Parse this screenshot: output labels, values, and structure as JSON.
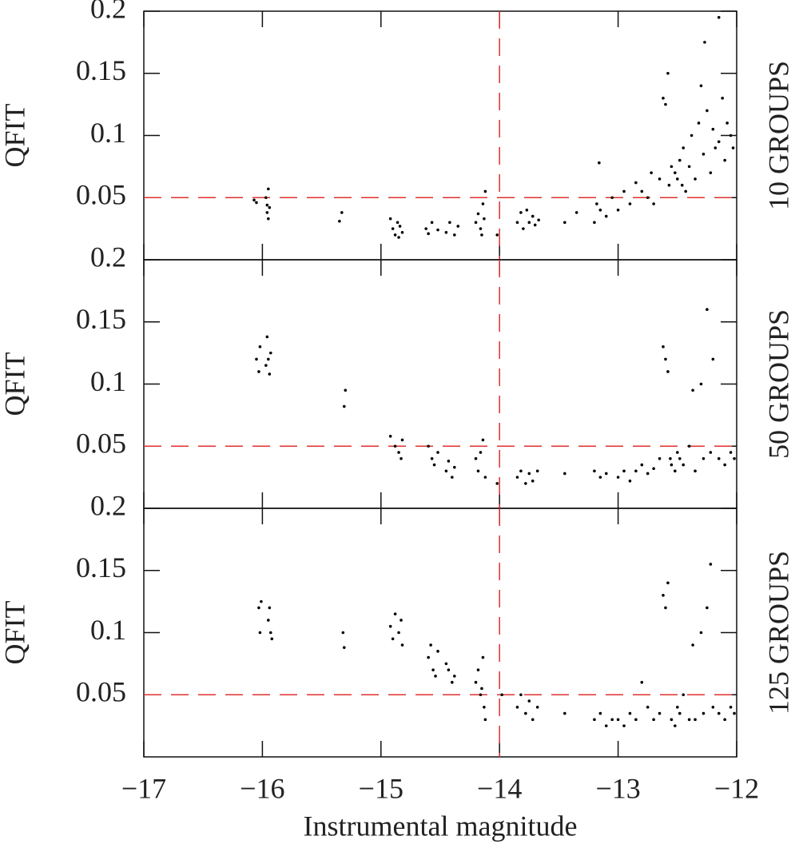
{
  "chart_data": [
    {
      "type": "scatter",
      "ylabel": "QFIT",
      "panel_label": "10 GROUPS",
      "color": "#000000",
      "ref_color": "#e03030",
      "xlim": [
        -17,
        -12
      ],
      "ylim": [
        0,
        0.2
      ],
      "yticks": [
        0.05,
        0.1,
        0.15,
        0.2
      ],
      "hline": 0.05,
      "vline": -14,
      "x": [
        -16.07,
        -16.05,
        -15.97,
        -15.96,
        -15.95,
        -15.96,
        -15.95,
        -15.94,
        -15.33,
        -15.35,
        -14.92,
        -14.9,
        -14.88,
        -14.86,
        -14.84,
        -14.82,
        -14.85,
        -14.62,
        -14.6,
        -14.57,
        -14.52,
        -14.45,
        -14.42,
        -14.38,
        -14.35,
        -14.2,
        -14.18,
        -14.16,
        -14.14,
        -14.12,
        -14.15,
        -14.13,
        -14.02,
        -13.85,
        -13.82,
        -13.8,
        -13.77,
        -13.75,
        -13.72,
        -13.7,
        -13.67,
        -13.45,
        -13.35,
        -13.2,
        -13.18,
        -13.16,
        -13.15,
        -13.1,
        -13.05,
        -13.0,
        -12.95,
        -12.9,
        -12.85,
        -12.8,
        -12.75,
        -12.72,
        -12.7,
        -12.65,
        -12.62,
        -12.6,
        -12.58,
        -12.57,
        -12.55,
        -12.52,
        -12.5,
        -12.48,
        -12.46,
        -12.45,
        -12.43,
        -12.4,
        -12.38,
        -12.35,
        -12.32,
        -12.3,
        -12.28,
        -12.25,
        -12.22,
        -12.2,
        -12.18,
        -12.15,
        -12.12,
        -12.1,
        -12.08,
        -12.05,
        -12.03,
        -12.27,
        -12.15
      ],
      "values": [
        0.048,
        0.046,
        0.05,
        0.044,
        0.057,
        0.038,
        0.033,
        0.042,
        0.038,
        0.031,
        0.033,
        0.025,
        0.02,
        0.03,
        0.027,
        0.022,
        0.018,
        0.025,
        0.021,
        0.03,
        0.024,
        0.022,
        0.03,
        0.02,
        0.027,
        0.03,
        0.037,
        0.025,
        0.045,
        0.055,
        0.02,
        0.033,
        0.02,
        0.03,
        0.038,
        0.025,
        0.04,
        0.03,
        0.035,
        0.028,
        0.032,
        0.03,
        0.038,
        0.03,
        0.045,
        0.078,
        0.04,
        0.035,
        0.05,
        0.04,
        0.055,
        0.045,
        0.062,
        0.055,
        0.05,
        0.07,
        0.045,
        0.065,
        0.13,
        0.125,
        0.15,
        0.06,
        0.075,
        0.07,
        0.065,
        0.08,
        0.06,
        0.09,
        0.055,
        0.075,
        0.1,
        0.065,
        0.11,
        0.14,
        0.085,
        0.12,
        0.07,
        0.105,
        0.09,
        0.095,
        0.13,
        0.08,
        0.11,
        0.1,
        0.09,
        0.175,
        0.195
      ]
    },
    {
      "type": "scatter",
      "ylabel": "QFIT",
      "panel_label": "50 GROUPS",
      "color": "#000000",
      "ref_color": "#e03030",
      "xlim": [
        -17,
        -12
      ],
      "ylim": [
        0,
        0.2
      ],
      "yticks": [
        0.05,
        0.1,
        0.15,
        0.2
      ],
      "hline": 0.05,
      "vline": -14,
      "x": [
        -16.05,
        -16.03,
        -16.02,
        -15.97,
        -15.95,
        -15.93,
        -15.96,
        -15.94,
        -15.3,
        -15.31,
        -14.92,
        -14.88,
        -14.85,
        -14.83,
        -14.82,
        -14.6,
        -14.57,
        -14.55,
        -14.52,
        -14.45,
        -14.43,
        -14.4,
        -14.38,
        -14.2,
        -14.18,
        -14.16,
        -14.14,
        -14.12,
        -14.02,
        -13.85,
        -13.82,
        -13.78,
        -13.75,
        -13.72,
        -13.68,
        -13.45,
        -13.2,
        -13.15,
        -13.1,
        -13.0,
        -12.95,
        -12.9,
        -12.85,
        -12.8,
        -12.75,
        -12.7,
        -12.65,
        -12.62,
        -12.6,
        -12.58,
        -12.56,
        -12.55,
        -12.52,
        -12.5,
        -12.48,
        -12.45,
        -12.4,
        -12.37,
        -12.35,
        -12.3,
        -12.28,
        -12.25,
        -12.22,
        -12.2,
        -12.15,
        -12.1,
        -12.05,
        -12.02
      ],
      "values": [
        0.12,
        0.11,
        0.13,
        0.115,
        0.12,
        0.125,
        0.138,
        0.108,
        0.095,
        0.082,
        0.058,
        0.05,
        0.045,
        0.04,
        0.055,
        0.05,
        0.04,
        0.035,
        0.045,
        0.03,
        0.038,
        0.025,
        0.033,
        0.04,
        0.03,
        0.045,
        0.055,
        0.025,
        0.02,
        0.025,
        0.03,
        0.02,
        0.028,
        0.022,
        0.03,
        0.028,
        0.03,
        0.025,
        0.028,
        0.025,
        0.03,
        0.022,
        0.03,
        0.035,
        0.028,
        0.032,
        0.04,
        0.13,
        0.12,
        0.11,
        0.04,
        0.035,
        0.03,
        0.045,
        0.04,
        0.035,
        0.05,
        0.095,
        0.03,
        0.1,
        0.04,
        0.16,
        0.045,
        0.12,
        0.04,
        0.035,
        0.045,
        0.04
      ]
    },
    {
      "type": "scatter",
      "ylabel": "QFIT",
      "panel_label": "125 GROUPS",
      "xlabel": "Instrumental magnitude",
      "color": "#000000",
      "ref_color": "#e03030",
      "xlim": [
        -17,
        -12
      ],
      "ylim": [
        0,
        0.2
      ],
      "yticks": [
        0.05,
        0.1,
        0.15,
        0.2
      ],
      "hline": 0.05,
      "vline": -14,
      "xticks": [
        {
          "value": -17,
          "label": "−17"
        },
        {
          "value": -16,
          "label": "−16"
        },
        {
          "value": -15,
          "label": "−15"
        },
        {
          "value": -14,
          "label": "−14"
        },
        {
          "value": -13,
          "label": "−13"
        },
        {
          "value": -12,
          "label": "−12"
        }
      ],
      "x": [
        -16.03,
        -16.02,
        -16.01,
        -15.95,
        -15.94,
        -15.93,
        -15.92,
        -15.32,
        -15.31,
        -14.92,
        -14.9,
        -14.88,
        -14.85,
        -14.83,
        -14.82,
        -14.6,
        -14.58,
        -14.56,
        -14.54,
        -14.52,
        -14.45,
        -14.43,
        -14.4,
        -14.38,
        -14.2,
        -14.18,
        -14.16,
        -14.14,
        -14.13,
        -14.12,
        -14.15,
        -13.98,
        -13.85,
        -13.82,
        -13.78,
        -13.75,
        -13.72,
        -13.68,
        -13.45,
        -13.2,
        -13.15,
        -13.1,
        -13.05,
        -13.0,
        -12.95,
        -12.9,
        -12.85,
        -12.8,
        -12.75,
        -12.7,
        -12.65,
        -12.62,
        -12.6,
        -12.58,
        -12.55,
        -12.52,
        -12.5,
        -12.48,
        -12.45,
        -12.4,
        -12.37,
        -12.35,
        -12.3,
        -12.28,
        -12.25,
        -12.22,
        -12.2,
        -12.15,
        -12.1,
        -12.05,
        -12.02
      ],
      "values": [
        0.12,
        0.1,
        0.125,
        0.11,
        0.12,
        0.1,
        0.095,
        0.1,
        0.088,
        0.105,
        0.095,
        0.115,
        0.1,
        0.11,
        0.09,
        0.08,
        0.09,
        0.07,
        0.065,
        0.085,
        0.075,
        0.07,
        0.06,
        0.065,
        0.06,
        0.07,
        0.05,
        0.08,
        0.04,
        0.03,
        0.055,
        0.05,
        0.04,
        0.05,
        0.035,
        0.045,
        0.03,
        0.04,
        0.035,
        0.03,
        0.035,
        0.025,
        0.03,
        0.03,
        0.025,
        0.035,
        0.03,
        0.06,
        0.04,
        0.03,
        0.035,
        0.13,
        0.12,
        0.14,
        0.03,
        0.025,
        0.04,
        0.035,
        0.05,
        0.03,
        0.09,
        0.03,
        0.1,
        0.035,
        0.12,
        0.155,
        0.04,
        0.035,
        0.03,
        0.04,
        0.035
      ]
    }
  ]
}
